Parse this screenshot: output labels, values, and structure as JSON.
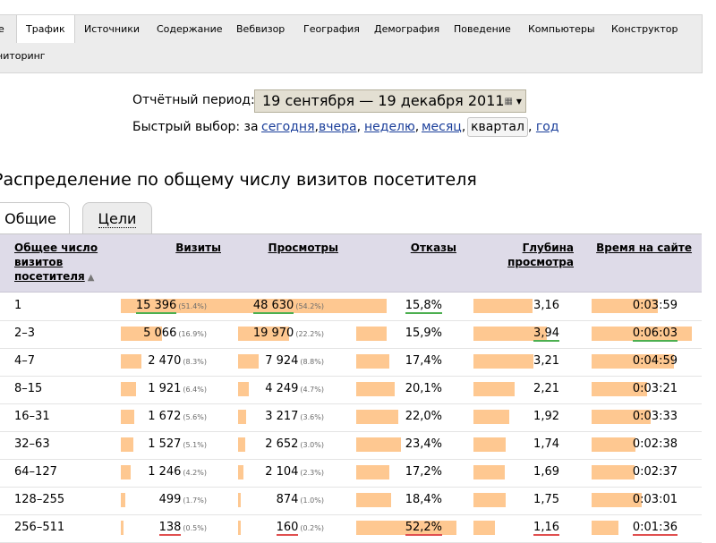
{
  "nav": {
    "items": [
      "Трафик",
      "Источники",
      "Содержание",
      "Вебвизор",
      "География",
      "Демография",
      "Поведение",
      "Компьютеры",
      "Конструктор"
    ],
    "row2": "ниторинг",
    "left_fragment": "е"
  },
  "period": {
    "label": "Отчётный период:",
    "value": "19 сентября — 19 декабря 2011",
    "calendar_icon": "calendar-icon",
    "dropdown_icon": "dropdown-arrow-icon"
  },
  "quick": {
    "label": "Быстрый выбор: за",
    "links": [
      "сегодня",
      "вчера",
      "неделю",
      "месяц"
    ],
    "selected": "квартал",
    "last": "год"
  },
  "section_title": "Распределение по общему числу визитов посетителя",
  "tabs": [
    "Общие",
    "Цели"
  ],
  "table": {
    "headers": {
      "group_lines": [
        "Общее число",
        "визитов",
        "посетителя"
      ],
      "sort_icon": "▲",
      "visits": "Визиты",
      "views": "Просмотры",
      "bounces": "Отказы",
      "depth_lines": [
        "Глубина",
        "просмотра"
      ],
      "time": "Время на сайте"
    },
    "rows": [
      {
        "group": "1",
        "visits": "15 396",
        "visits_pct": "(51.4%)",
        "visits_frac": 0.514,
        "views": "48 630",
        "views_pct": "(54.2%)",
        "views_frac": 0.542,
        "bounce": "15,8%",
        "bounce_frac": 0.158,
        "depth": "3,16",
        "depth_value": 3.16,
        "time": "0:03:59",
        "time_sec": 239,
        "mark": {
          "visits": "g",
          "views": "g",
          "bounce": "g"
        }
      },
      {
        "group": "2–3",
        "visits": "5 066",
        "visits_pct": "(16.9%)",
        "visits_frac": 0.169,
        "views": "19 970",
        "views_pct": "(22.2%)",
        "views_frac": 0.222,
        "bounce": "15,9%",
        "bounce_frac": 0.159,
        "depth": "3,94",
        "depth_value": 3.94,
        "time": "0:06:03",
        "time_sec": 363,
        "mark": {
          "depth": "g",
          "time": "g"
        }
      },
      {
        "group": "4–7",
        "visits": "2 470",
        "visits_pct": "(8.3%)",
        "visits_frac": 0.083,
        "views": "7 924",
        "views_pct": "(8.8%)",
        "views_frac": 0.088,
        "bounce": "17,4%",
        "bounce_frac": 0.174,
        "depth": "3,21",
        "depth_value": 3.21,
        "time": "0:04:59",
        "time_sec": 299,
        "mark": {}
      },
      {
        "group": "8–15",
        "visits": "1 921",
        "visits_pct": "(6.4%)",
        "visits_frac": 0.064,
        "views": "4 249",
        "views_pct": "(4.7%)",
        "views_frac": 0.047,
        "bounce": "20,1%",
        "bounce_frac": 0.201,
        "depth": "2,21",
        "depth_value": 2.21,
        "time": "0:03:21",
        "time_sec": 201,
        "mark": {}
      },
      {
        "group": "16–31",
        "visits": "1 672",
        "visits_pct": "(5.6%)",
        "visits_frac": 0.056,
        "views": "3 217",
        "views_pct": "(3.6%)",
        "views_frac": 0.036,
        "bounce": "22,0%",
        "bounce_frac": 0.22,
        "depth": "1,92",
        "depth_value": 1.92,
        "time": "0:03:33",
        "time_sec": 213,
        "mark": {}
      },
      {
        "group": "32–63",
        "visits": "1 527",
        "visits_pct": "(5.1%)",
        "visits_frac": 0.051,
        "views": "2 652",
        "views_pct": "(3.0%)",
        "views_frac": 0.03,
        "bounce": "23,4%",
        "bounce_frac": 0.234,
        "depth": "1,74",
        "depth_value": 1.74,
        "time": "0:02:38",
        "time_sec": 158,
        "mark": {}
      },
      {
        "group": "64–127",
        "visits": "1 246",
        "visits_pct": "(4.2%)",
        "visits_frac": 0.042,
        "views": "2 104",
        "views_pct": "(2.3%)",
        "views_frac": 0.023,
        "bounce": "17,2%",
        "bounce_frac": 0.172,
        "depth": "1,69",
        "depth_value": 1.69,
        "time": "0:02:37",
        "time_sec": 157,
        "mark": {}
      },
      {
        "group": "128–255",
        "visits": "499",
        "visits_pct": "(1.7%)",
        "visits_frac": 0.017,
        "views": "874",
        "views_pct": "(1.0%)",
        "views_frac": 0.01,
        "bounce": "18,4%",
        "bounce_frac": 0.184,
        "depth": "1,75",
        "depth_value": 1.75,
        "time": "0:03:01",
        "time_sec": 181,
        "mark": {}
      },
      {
        "group": "256–511",
        "visits": "138",
        "visits_pct": "(0.5%)",
        "visits_frac": 0.005,
        "views": "160",
        "views_pct": "(0.2%)",
        "views_frac": 0.002,
        "bounce": "52,2%",
        "bounce_frac": 0.522,
        "depth": "1,16",
        "depth_value": 1.16,
        "time": "0:01:36",
        "time_sec": 96,
        "mark": {
          "visits": "r",
          "views": "r",
          "bounce": "r",
          "depth": "r",
          "time": "r"
        }
      }
    ]
  }
}
